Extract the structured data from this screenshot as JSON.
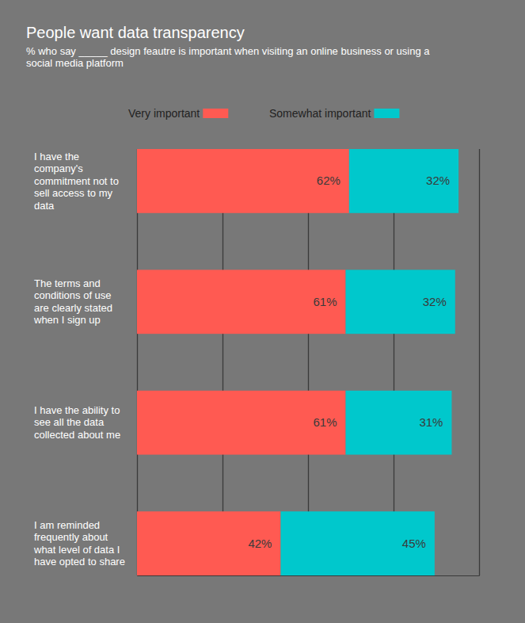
{
  "chart_data": {
    "type": "bar",
    "orientation": "horizontal",
    "stacked": true,
    "title": "People want data transparency",
    "subtitle": "% who say _____ design feautre is important when visiting an online business or using a social media platform",
    "categories": [
      "I have the company's commitment not to sell access to my data",
      "The terms and conditions of use are clearly stated when I sign up",
      "I have the ability to see all the data collected about me",
      "I am reminded frequently about what level of data I have opted to share"
    ],
    "series": [
      {
        "name": "Very important",
        "color": "#ff5a52",
        "values": [
          62,
          61,
          61,
          42
        ],
        "value_labels": [
          "62%",
          "61%",
          "61%",
          "42%"
        ]
      },
      {
        "name": "Somewhat important",
        "color": "#00c8cc",
        "values": [
          32,
          32,
          31,
          45
        ],
        "value_labels": [
          "32%",
          "32%",
          "31%",
          "45%"
        ]
      }
    ],
    "xlim": [
      0,
      100
    ],
    "xticks": [
      0,
      25,
      50,
      75,
      100
    ],
    "grid": true,
    "tick_labels": false,
    "data_labels": true,
    "legend": "top"
  }
}
